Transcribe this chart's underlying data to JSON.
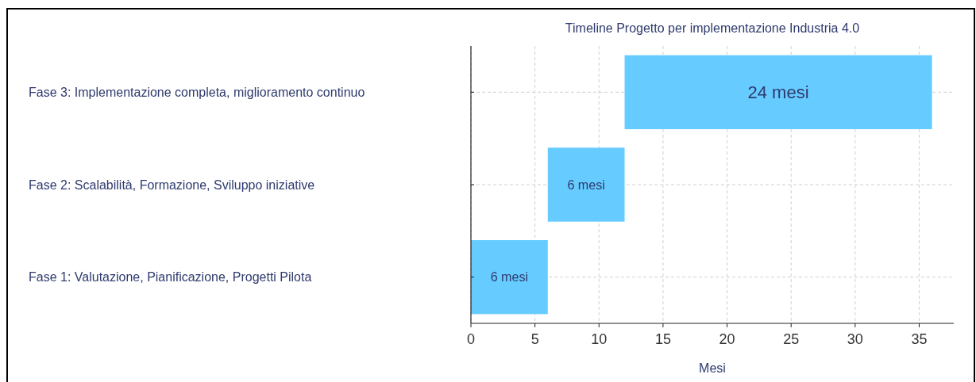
{
  "chart_data": {
    "type": "bar",
    "orientation": "horizontal",
    "title": "Timeline Progetto per implementazione Industria 4.0",
    "xlabel": "Mesi",
    "categories": [
      "Fase 3: Implementazione completa, miglioramento continuo",
      "Fase 2: Scalabilità, Formazione, Sviluppo iniziative",
      "Fase 1: Valutazione, Pianificazione, Progetti Pilota"
    ],
    "values": [
      24,
      6,
      6
    ],
    "base": [
      12,
      6,
      0
    ],
    "value_labels": [
      "24 mesi",
      "6 mesi",
      "6 mesi"
    ],
    "color": "#66ccff",
    "xlim": [
      0,
      37.7
    ],
    "xticks": [
      0,
      5,
      10,
      15,
      20,
      25,
      30,
      35
    ],
    "grid": true
  }
}
